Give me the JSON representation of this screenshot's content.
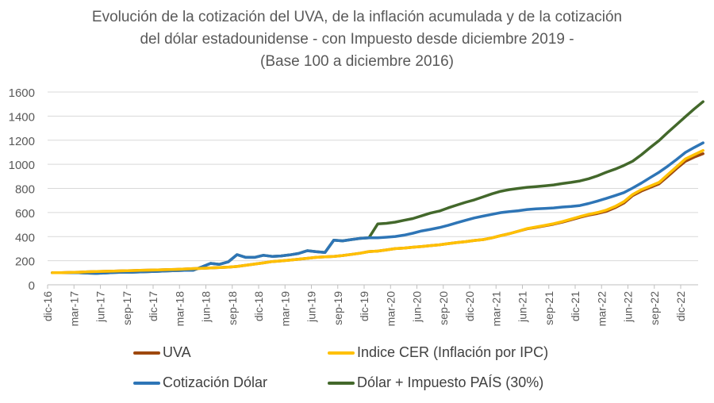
{
  "chart_data": {
    "type": "line",
    "title": [
      "Evolución de la cotización del UVA, de la inflación acumulada y de la cotización",
      "del dólar estadounidense - con Impuesto desde diciembre 2019 -",
      "(Base 100 a diciembre 2016)"
    ],
    "xlabel": "",
    "ylabel": "",
    "ylim": [
      0,
      1600
    ],
    "y_ticks": [
      "0",
      "200",
      "400",
      "600",
      "800",
      "1000",
      "1200",
      "1400",
      "1600"
    ],
    "grid": true,
    "legend_position": "bottom",
    "x": [
      "dic-16",
      "ene-17",
      "feb-17",
      "mar-17",
      "abr-17",
      "may-17",
      "jun-17",
      "jul-17",
      "ago-17",
      "sep-17",
      "oct-17",
      "nov-17",
      "dic-17",
      "ene-18",
      "feb-18",
      "mar-18",
      "abr-18",
      "may-18",
      "jun-18",
      "jul-18",
      "ago-18",
      "sep-18",
      "oct-18",
      "nov-18",
      "dic-18",
      "ene-19",
      "feb-19",
      "mar-19",
      "abr-19",
      "may-19",
      "jun-19",
      "jul-19",
      "ago-19",
      "sep-19",
      "oct-19",
      "nov-19",
      "dic-19",
      "ene-20",
      "feb-20",
      "mar-20",
      "abr-20",
      "may-20",
      "jun-20",
      "jul-20",
      "ago-20",
      "sep-20",
      "oct-20",
      "nov-20",
      "dic-20",
      "ene-21",
      "feb-21",
      "mar-21",
      "abr-21",
      "may-21",
      "jun-21",
      "jul-21",
      "ago-21",
      "sep-21",
      "oct-21",
      "nov-21",
      "dic-21",
      "ene-22",
      "feb-22",
      "mar-22",
      "abr-22",
      "may-22",
      "jun-22",
      "jul-22",
      "ago-22",
      "sep-22",
      "oct-22",
      "nov-22",
      "dic-22",
      "ene-23",
      "feb-23"
    ],
    "x_tick_labels": [
      "dic-16",
      "mar-17",
      "jun-17",
      "sep-17",
      "dic-17",
      "mar-18",
      "jun-18",
      "sep-18",
      "dic-18",
      "mar-19",
      "jun-19",
      "sep-19",
      "dic-19",
      "mar-20",
      "jun-20",
      "sep-20",
      "dic-20",
      "mar-21",
      "jun-21",
      "sep-21",
      "dic-21",
      "mar-22",
      "jun-22",
      "sep-22",
      "dic-22"
    ],
    "series": [
      {
        "name": "UVA",
        "color": "#9e480e",
        "values": [
          100,
          101,
          103,
          105,
          108,
          110,
          112,
          114,
          116,
          118,
          120,
          122,
          124,
          126,
          128,
          131,
          134,
          137,
          140,
          143,
          147,
          152,
          162,
          172,
          182,
          193,
          198,
          205,
          213,
          220,
          228,
          232,
          236,
          243,
          252,
          262,
          276,
          280,
          290,
          300,
          305,
          312,
          318,
          325,
          332,
          342,
          350,
          358,
          368,
          375,
          390,
          408,
          425,
          445,
          465,
          477,
          490,
          503,
          520,
          540,
          560,
          578,
          592,
          610,
          640,
          678,
          740,
          778,
          808,
          838,
          900,
          965,
          1025,
          1060,
          1088
        ]
      },
      {
        "name": "Indice CER (Inflación por IPC)",
        "color": "#ffc000",
        "values": [
          100,
          101,
          103,
          105,
          108,
          110,
          112,
          114,
          116,
          118,
          120,
          122,
          124,
          126,
          128,
          131,
          134,
          137,
          140,
          143,
          147,
          152,
          162,
          172,
          182,
          193,
          198,
          205,
          213,
          220,
          228,
          232,
          236,
          243,
          252,
          262,
          276,
          280,
          290,
          300,
          305,
          312,
          318,
          325,
          332,
          342,
          350,
          358,
          368,
          375,
          390,
          408,
          425,
          445,
          467,
          480,
          493,
          507,
          525,
          545,
          566,
          585,
          600,
          620,
          650,
          690,
          750,
          790,
          820,
          850,
          915,
          980,
          1045,
          1080,
          1115
        ]
      },
      {
        "name": "Cotización Dólar",
        "color": "#2e75b6",
        "values": [
          100,
          100,
          100,
          100,
          97,
          95,
          98,
          102,
          105,
          105,
          107,
          109,
          112,
          115,
          118,
          120,
          120,
          148,
          178,
          170,
          190,
          250,
          228,
          228,
          245,
          236,
          240,
          248,
          260,
          283,
          275,
          268,
          370,
          365,
          375,
          385,
          390,
          390,
          395,
          401,
          412,
          428,
          447,
          460,
          475,
          493,
          515,
          535,
          555,
          570,
          585,
          599,
          608,
          615,
          625,
          630,
          634,
          638,
          645,
          650,
          658,
          675,
          695,
          717,
          740,
          765,
          803,
          845,
          890,
          934,
          985,
          1040,
          1099,
          1140,
          1178
        ]
      },
      {
        "name": "Dólar + Impuesto PAÍS (30%)",
        "color": "#43682b",
        "values": [
          100,
          100,
          100,
          100,
          97,
          95,
          98,
          102,
          105,
          105,
          107,
          109,
          112,
          115,
          118,
          120,
          120,
          148,
          178,
          170,
          190,
          250,
          228,
          228,
          245,
          236,
          240,
          248,
          260,
          283,
          275,
          268,
          370,
          365,
          375,
          385,
          390,
          505,
          510,
          520,
          535,
          550,
          572,
          595,
          612,
          638,
          662,
          685,
          705,
          730,
          755,
          776,
          790,
          800,
          809,
          815,
          822,
          829,
          840,
          850,
          862,
          880,
          905,
          934,
          960,
          990,
          1026,
          1080,
          1140,
          1198,
          1265,
          1330,
          1395,
          1460,
          1520
        ]
      }
    ]
  }
}
